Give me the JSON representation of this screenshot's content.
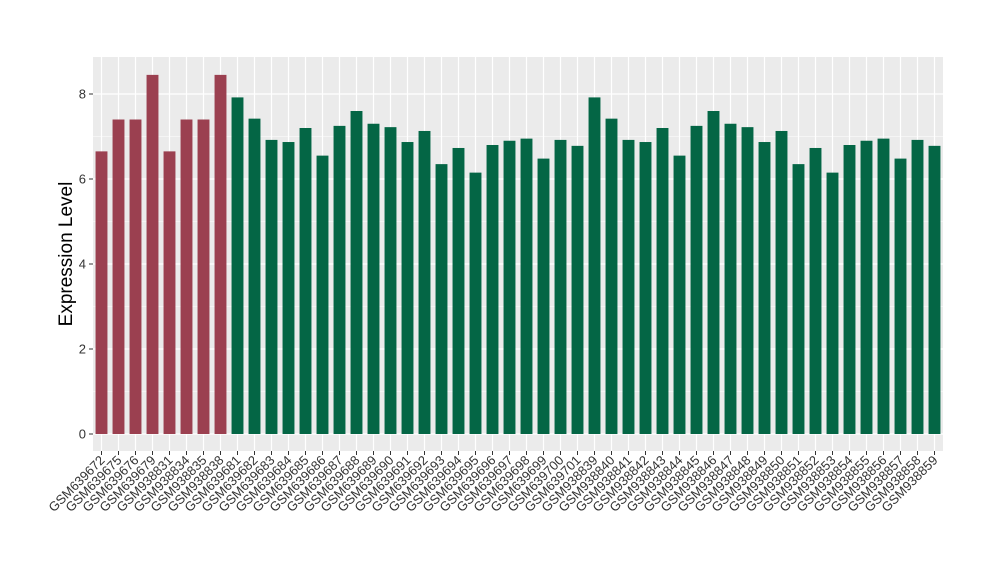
{
  "chart_data": {
    "type": "bar",
    "ylabel": "Expression Level",
    "xlabel": "",
    "ylim": [
      0,
      8.8
    ],
    "yticks": [
      0,
      2,
      4,
      6,
      8
    ],
    "grid": true,
    "colors": {
      "group_a": "#9B4050",
      "group_b": "#046645",
      "panel_background": "#EBEBEB",
      "grid": "#FFFFFF"
    },
    "categories": [
      "GSM639672",
      "GSM639675",
      "GSM639676",
      "GSM639679",
      "GSM938831",
      "GSM938834",
      "GSM938835",
      "GSM938838",
      "GSM639681",
      "GSM639682",
      "GSM639683",
      "GSM639684",
      "GSM639685",
      "GSM639686",
      "GSM639687",
      "GSM639688",
      "GSM639689",
      "GSM639690",
      "GSM639691",
      "GSM639692",
      "GSM639693",
      "GSM639694",
      "GSM639695",
      "GSM639696",
      "GSM639697",
      "GSM639698",
      "GSM639699",
      "GSM639700",
      "GSM639701",
      "GSM938839",
      "GSM938840",
      "GSM938841",
      "GSM938842",
      "GSM938843",
      "GSM938844",
      "GSM938845",
      "GSM938846",
      "GSM938847",
      "GSM938848",
      "GSM938849",
      "GSM938850",
      "GSM938851",
      "GSM938852",
      "GSM938853",
      "GSM938854",
      "GSM938855",
      "GSM938856",
      "GSM938857",
      "GSM938858",
      "GSM938859"
    ],
    "values": [
      6.65,
      7.4,
      7.4,
      8.45,
      6.65,
      7.4,
      7.4,
      8.45,
      7.92,
      7.42,
      6.92,
      6.87,
      7.2,
      6.55,
      7.25,
      7.6,
      7.3,
      7.22,
      6.87,
      7.13,
      6.35,
      6.73,
      6.15,
      6.8,
      6.9,
      6.95,
      6.48,
      6.92,
      6.78,
      7.92,
      7.42,
      6.92,
      6.87,
      7.2,
      6.55,
      7.25,
      7.6,
      7.3,
      7.22,
      6.87,
      7.13,
      6.35,
      6.73,
      6.15,
      6.8,
      6.9,
      6.95,
      6.48,
      6.92,
      6.78
    ],
    "groups": [
      "a",
      "a",
      "a",
      "a",
      "a",
      "a",
      "a",
      "a",
      "b",
      "b",
      "b",
      "b",
      "b",
      "b",
      "b",
      "b",
      "b",
      "b",
      "b",
      "b",
      "b",
      "b",
      "b",
      "b",
      "b",
      "b",
      "b",
      "b",
      "b",
      "b",
      "b",
      "b",
      "b",
      "b",
      "b",
      "b",
      "b",
      "b",
      "b",
      "b",
      "b",
      "b",
      "b",
      "b",
      "b",
      "b",
      "b",
      "b",
      "b",
      "b"
    ]
  }
}
